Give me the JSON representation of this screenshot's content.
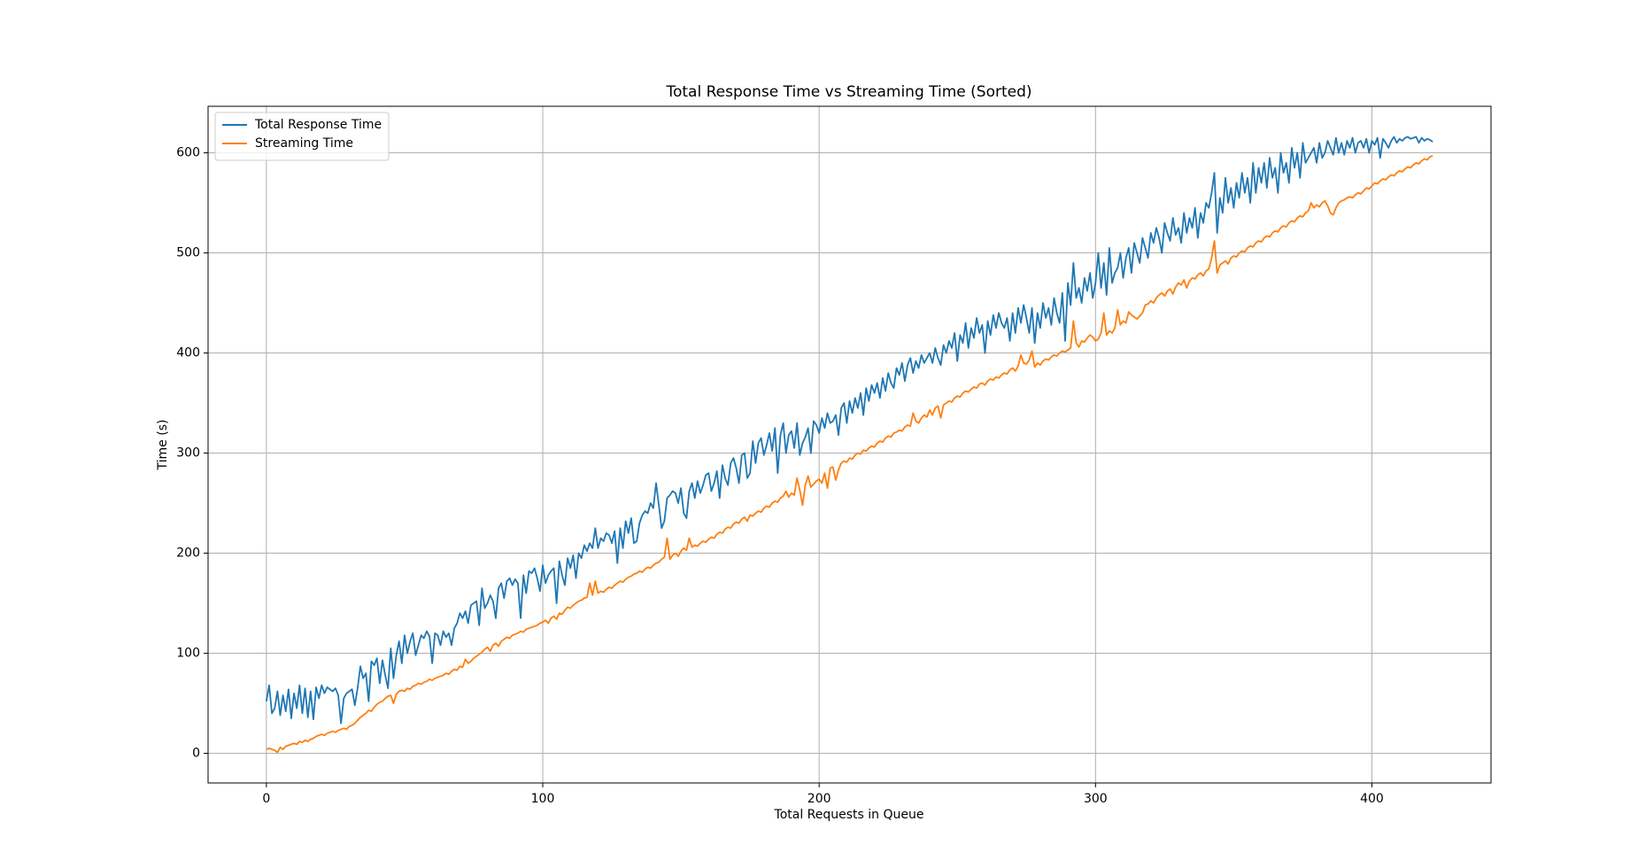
{
  "chart_data": {
    "type": "line",
    "title": "Total Response Time vs Streaming Time (Sorted)",
    "x_label": "Total Requests in Queue",
    "y_label": "Time (s)",
    "xlim": [
      -21.1,
      443.1
    ],
    "ylim": [
      -29.6,
      646.5
    ],
    "xticks": [
      0,
      100,
      200,
      300,
      400
    ],
    "yticks": [
      0,
      100,
      200,
      300,
      400,
      500,
      600
    ],
    "grid": true,
    "legend": "upper left",
    "x": [
      0,
      1,
      2,
      3,
      4,
      5,
      6,
      7,
      8,
      9,
      10,
      11,
      12,
      13,
      14,
      15,
      16,
      17,
      18,
      19,
      20,
      21,
      22,
      23,
      24,
      25,
      26,
      27,
      28,
      29,
      30,
      31,
      32,
      33,
      34,
      35,
      36,
      37,
      38,
      39,
      40,
      41,
      42,
      43,
      44,
      45,
      46,
      47,
      48,
      49,
      50,
      51,
      52,
      53,
      54,
      55,
      56,
      57,
      58,
      59,
      60,
      61,
      62,
      63,
      64,
      65,
      66,
      67,
      68,
      69,
      70,
      71,
      72,
      73,
      74,
      75,
      76,
      77,
      78,
      79,
      80,
      81,
      82,
      83,
      84,
      85,
      86,
      87,
      88,
      89,
      90,
      91,
      92,
      93,
      94,
      95,
      96,
      97,
      98,
      99,
      100,
      101,
      102,
      103,
      104,
      105,
      106,
      107,
      108,
      109,
      110,
      111,
      112,
      113,
      114,
      115,
      116,
      117,
      118,
      119,
      120,
      121,
      122,
      123,
      124,
      125,
      126,
      127,
      128,
      129,
      130,
      131,
      132,
      133,
      134,
      135,
      136,
      137,
      138,
      139,
      140,
      141,
      142,
      143,
      144,
      145,
      146,
      147,
      148,
      149,
      150,
      151,
      152,
      153,
      154,
      155,
      156,
      157,
      158,
      159,
      160,
      161,
      162,
      163,
      164,
      165,
      166,
      167,
      168,
      169,
      170,
      171,
      172,
      173,
      174,
      175,
      176,
      177,
      178,
      179,
      180,
      181,
      182,
      183,
      184,
      185,
      186,
      187,
      188,
      189,
      190,
      191,
      192,
      193,
      194,
      195,
      196,
      197,
      198,
      199,
      200,
      201,
      202,
      203,
      204,
      205,
      206,
      207,
      208,
      209,
      210,
      211,
      212,
      213,
      214,
      215,
      216,
      217,
      218,
      219,
      220,
      221,
      222,
      223,
      224,
      225,
      226,
      227,
      228,
      229,
      230,
      231,
      232,
      233,
      234,
      235,
      236,
      237,
      238,
      239,
      240,
      241,
      242,
      243,
      244,
      245,
      246,
      247,
      248,
      249,
      250,
      251,
      252,
      253,
      254,
      255,
      256,
      257,
      258,
      259,
      260,
      261,
      262,
      263,
      264,
      265,
      266,
      267,
      268,
      269,
      270,
      271,
      272,
      273,
      274,
      275,
      276,
      277,
      278,
      279,
      280,
      281,
      282,
      283,
      284,
      285,
      286,
      287,
      288,
      289,
      290,
      291,
      292,
      293,
      294,
      295,
      296,
      297,
      298,
      299,
      300,
      301,
      302,
      303,
      304,
      305,
      306,
      307,
      308,
      309,
      310,
      311,
      312,
      313,
      314,
      315,
      316,
      317,
      318,
      319,
      320,
      321,
      322,
      323,
      324,
      325,
      326,
      327,
      328,
      329,
      330,
      331,
      332,
      333,
      334,
      335,
      336,
      337,
      338,
      339,
      340,
      341,
      342,
      343,
      344,
      345,
      346,
      347,
      348,
      349,
      350,
      351,
      352,
      353,
      354,
      355,
      356,
      357,
      358,
      359,
      360,
      361,
      362,
      363,
      364,
      365,
      366,
      367,
      368,
      369,
      370,
      371,
      372,
      373,
      374,
      375,
      376,
      377,
      378,
      379,
      380,
      381,
      382,
      383,
      384,
      385,
      386,
      387,
      388,
      389,
      390,
      391,
      392,
      393,
      394,
      395,
      396,
      397,
      398,
      399,
      400,
      401,
      402,
      403,
      404,
      405,
      406,
      407,
      408,
      409,
      410,
      411,
      412,
      413,
      414,
      415,
      416,
      417,
      418,
      419,
      420,
      421,
      422
    ],
    "series": [
      {
        "name": "Total Response Time",
        "color": "#1f77b4",
        "values": [
          52,
          68,
          40,
          45,
          62,
          38,
          58,
          42,
          64,
          35,
          60,
          45,
          68,
          40,
          65,
          36,
          62,
          34,
          66,
          55,
          68,
          60,
          66,
          64,
          62,
          65,
          58,
          30,
          55,
          60,
          62,
          64,
          48,
          65,
          87,
          75,
          80,
          52,
          92,
          88,
          95,
          70,
          93,
          78,
          65,
          105,
          75,
          98,
          112,
          90,
          118,
          100,
          112,
          120,
          98,
          108,
          118,
          115,
          122,
          117,
          90,
          120,
          118,
          108,
          122,
          116,
          120,
          108,
          125,
          130,
          140,
          135,
          142,
          130,
          148,
          150,
          152,
          128,
          165,
          145,
          150,
          158,
          152,
          135,
          165,
          170,
          155,
          172,
          175,
          168,
          174,
          170,
          135,
          178,
          160,
          182,
          180,
          185,
          175,
          162,
          188,
          170,
          178,
          182,
          185,
          150,
          192,
          178,
          168,
          195,
          185,
          198,
          175,
          200,
          195,
          208,
          202,
          210,
          205,
          225,
          205,
          215,
          212,
          220,
          218,
          210,
          222,
          190,
          225,
          205,
          232,
          220,
          235,
          210,
          212,
          230,
          238,
          242,
          240,
          250,
          245,
          270,
          248,
          225,
          232,
          255,
          258,
          262,
          260,
          250,
          265,
          240,
          235,
          262,
          270,
          255,
          272,
          260,
          268,
          278,
          280,
          262,
          270,
          282,
          255,
          288,
          275,
          268,
          290,
          295,
          285,
          270,
          298,
          300,
          275,
          280,
          312,
          290,
          310,
          315,
          298,
          308,
          320,
          302,
          325,
          280,
          318,
          330,
          300,
          318,
          322,
          305,
          330,
          298,
          310,
          316,
          325,
          300,
          332,
          328,
          320,
          335,
          325,
          340,
          330,
          332,
          338,
          318,
          345,
          350,
          330,
          352,
          340,
          355,
          345,
          360,
          338,
          365,
          352,
          368,
          360,
          370,
          355,
          375,
          362,
          380,
          370,
          365,
          385,
          378,
          390,
          372,
          388,
          395,
          380,
          392,
          385,
          398,
          390,
          395,
          400,
          390,
          405,
          395,
          388,
          408,
          400,
          412,
          405,
          420,
          392,
          418,
          410,
          430,
          405,
          425,
          415,
          435,
          420,
          428,
          400,
          432,
          418,
          438,
          425,
          440,
          430,
          425,
          435,
          412,
          440,
          420,
          445,
          430,
          448,
          435,
          420,
          445,
          410,
          440,
          425,
          450,
          435,
          445,
          428,
          455,
          440,
          430,
          460,
          412,
          470,
          448,
          490,
          455,
          465,
          450,
          475,
          462,
          480,
          455,
          470,
          500,
          465,
          490,
          458,
          505,
          470,
          480,
          485,
          500,
          475,
          495,
          505,
          480,
          510,
          500,
          490,
          515,
          505,
          495,
          520,
          510,
          525,
          515,
          500,
          530,
          520,
          512,
          535,
          518,
          525,
          510,
          540,
          520,
          535,
          525,
          545,
          515,
          540,
          530,
          550,
          545,
          560,
          580,
          520,
          555,
          540,
          575,
          550,
          565,
          545,
          570,
          555,
          580,
          560,
          575,
          550,
          590,
          560,
          585,
          570,
          590,
          565,
          595,
          575,
          585,
          560,
          600,
          580,
          590,
          570,
          605,
          585,
          600,
          575,
          610,
          590,
          595,
          600,
          605,
          590,
          610,
          595,
          600,
          612,
          605,
          598,
          615,
          600,
          610,
          598,
          612,
          605,
          615,
          600,
          610,
          612,
          605,
          614,
          600,
          612,
          608,
          615,
          595,
          614,
          610,
          605,
          612,
          616,
          610,
          614,
          612,
          615,
          616,
          614,
          615,
          616,
          610,
          615,
          612,
          614,
          613,
          611
        ]
      },
      {
        "name": "Streaming Time",
        "color": "#ff7f0e",
        "values": [
          4,
          5,
          4,
          3,
          1,
          6,
          4,
          7,
          8,
          9,
          10,
          9,
          12,
          11,
          13,
          12,
          14,
          15,
          17,
          18,
          19,
          18,
          20,
          21,
          22,
          21,
          23,
          24,
          25,
          24,
          27,
          28,
          30,
          33,
          36,
          38,
          40,
          43,
          42,
          46,
          49,
          51,
          52,
          55,
          57,
          58,
          50,
          59,
          62,
          63,
          62,
          65,
          64,
          67,
          68,
          70,
          69,
          71,
          72,
          74,
          73,
          75,
          76,
          77,
          78,
          80,
          79,
          82,
          84,
          83,
          87,
          86,
          94,
          90,
          92,
          95,
          97,
          99,
          101,
          104,
          106,
          102,
          108,
          110,
          107,
          112,
          114,
          116,
          115,
          118,
          119,
          120,
          122,
          121,
          124,
          125,
          126,
          127,
          128,
          130,
          131,
          133,
          130,
          135,
          137,
          134,
          140,
          139,
          143,
          146,
          145,
          148,
          150,
          152,
          153,
          155,
          156,
          170,
          158,
          172,
          160,
          162,
          161,
          164,
          166,
          165,
          168,
          170,
          172,
          171,
          174,
          176,
          177,
          179,
          180,
          182,
          181,
          184,
          186,
          185,
          188,
          190,
          191,
          194,
          196,
          215,
          194,
          198,
          200,
          197,
          202,
          205,
          203,
          215,
          206,
          208,
          207,
          210,
          212,
          211,
          214,
          216,
          215,
          219,
          221,
          220,
          224,
          226,
          225,
          229,
          231,
          230,
          234,
          236,
          232,
          238,
          237,
          240,
          242,
          241,
          245,
          247,
          246,
          250,
          252,
          251,
          255,
          257,
          262,
          256,
          260,
          258,
          275,
          263,
          248,
          268,
          277,
          266,
          269,
          272,
          274,
          270,
          280,
          265,
          285,
          286,
          273,
          283,
          290,
          292,
          291,
          295,
          294,
          298,
          300,
          299,
          303,
          302,
          305,
          307,
          306,
          310,
          312,
          311,
          315,
          317,
          316,
          320,
          321,
          323,
          322,
          326,
          328,
          327,
          340,
          332,
          330,
          335,
          338,
          336,
          343,
          338,
          345,
          347,
          335,
          348,
          350,
          352,
          351,
          355,
          357,
          356,
          360,
          362,
          361,
          364,
          366,
          365,
          369,
          370,
          368,
          372,
          374,
          373,
          376,
          375,
          378,
          380,
          379,
          383,
          385,
          382,
          387,
          398,
          390,
          389,
          393,
          402,
          386,
          390,
          388,
          392,
          394,
          393,
          396,
          398,
          397,
          400,
          402,
          401,
          403,
          405,
          432,
          410,
          406,
          412,
          411,
          415,
          418,
          416,
          412,
          414,
          420,
          440,
          418,
          422,
          420,
          425,
          443,
          428,
          432,
          430,
          441,
          438,
          436,
          434,
          437,
          440,
          448,
          449,
          452,
          450,
          455,
          458,
          460,
          457,
          462,
          464,
          459,
          466,
          470,
          468,
          473,
          465,
          472,
          475,
          474,
          478,
          480,
          477,
          482,
          484,
          495,
          512,
          480,
          488,
          490,
          492,
          489,
          495,
          497,
          496,
          500,
          502,
          501,
          505,
          507,
          506,
          510,
          512,
          511,
          515,
          517,
          516,
          520,
          522,
          521,
          525,
          527,
          526,
          530,
          532,
          531,
          535,
          537,
          536,
          540,
          542,
          550,
          545,
          548,
          546,
          550,
          552,
          547,
          540,
          538,
          545,
          550,
          552,
          553,
          555,
          556,
          555,
          558,
          560,
          559,
          562,
          565,
          564,
          567,
          570,
          569,
          572,
          574,
          573,
          576,
          578,
          577,
          580,
          582,
          581,
          584,
          586,
          585,
          588,
          590,
          589,
          592,
          594,
          593,
          596,
          597
        ]
      }
    ]
  }
}
